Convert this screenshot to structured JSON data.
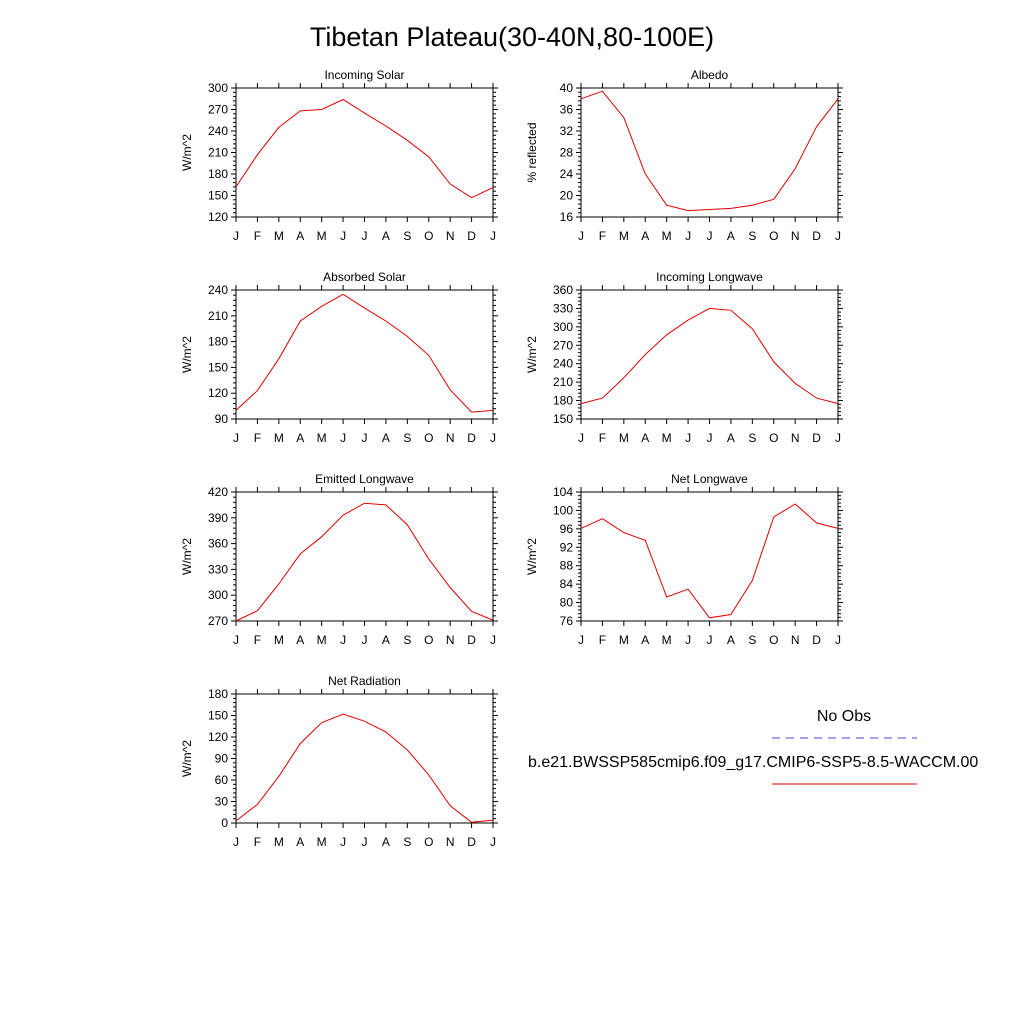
{
  "figure": {
    "title": "Tibetan Plateau(30-40N,80-100E)"
  },
  "legend": {
    "obs_label": "No Obs",
    "obs_color": "#4444dd",
    "model_label": "b.e21.BWSSP585cmip6.f09_g17.CMIP6-SSP5-8.5-WACCM.00",
    "model_color": "#dd0000"
  },
  "chart_data": [
    {
      "type": "line",
      "title": "Incoming Solar",
      "ylabel": "W/m^2",
      "ylim": [
        120,
        300
      ],
      "yticks": [
        120,
        150,
        180,
        210,
        240,
        270,
        300
      ],
      "x": [
        "J",
        "F",
        "M",
        "A",
        "M",
        "J",
        "J",
        "A",
        "S",
        "O",
        "N",
        "D",
        "J"
      ],
      "series": [
        {
          "values": [
            162,
            207,
            245,
            268,
            270,
            284,
            265,
            247,
            227,
            204,
            166,
            147,
            161
          ]
        }
      ]
    },
    {
      "type": "line",
      "title": "Albedo",
      "ylabel": "% reflected",
      "ylim": [
        16,
        40
      ],
      "yticks": [
        16,
        20,
        24,
        28,
        32,
        36,
        40
      ],
      "x": [
        "J",
        "F",
        "M",
        "A",
        "M",
        "J",
        "J",
        "A",
        "S",
        "O",
        "N",
        "D",
        "J"
      ],
      "series": [
        {
          "values": [
            38.0,
            39.4,
            34.5,
            24.0,
            18.2,
            17.2,
            17.4,
            17.6,
            18.2,
            19.3,
            25.0,
            32.8,
            38.0
          ]
        }
      ]
    },
    {
      "type": "line",
      "title": "Absorbed Solar",
      "ylabel": "W/m^2",
      "ylim": [
        90,
        240
      ],
      "yticks": [
        90,
        120,
        150,
        180,
        210,
        240
      ],
      "x": [
        "J",
        "F",
        "M",
        "A",
        "M",
        "J",
        "J",
        "A",
        "S",
        "O",
        "N",
        "D",
        "J"
      ],
      "series": [
        {
          "values": [
            100,
            123,
            160,
            204,
            221,
            235,
            219,
            204,
            186,
            164,
            124,
            98,
            100
          ]
        }
      ]
    },
    {
      "type": "line",
      "title": "Incoming Longwave",
      "ylabel": "W/m^2",
      "ylim": [
        150,
        360
      ],
      "yticks": [
        150,
        180,
        210,
        240,
        270,
        300,
        330,
        360
      ],
      "x": [
        "J",
        "F",
        "M",
        "A",
        "M",
        "J",
        "J",
        "A",
        "S",
        "O",
        "N",
        "D",
        "J"
      ],
      "series": [
        {
          "values": [
            175,
            184,
            217,
            255,
            287,
            311,
            330,
            327,
            297,
            243,
            208,
            184,
            175
          ]
        }
      ]
    },
    {
      "type": "line",
      "title": "Emitted Longwave",
      "ylabel": "W/m^2",
      "ylim": [
        270,
        420
      ],
      "yticks": [
        270,
        300,
        330,
        360,
        390,
        420
      ],
      "x": [
        "J",
        "F",
        "M",
        "A",
        "M",
        "J",
        "J",
        "A",
        "S",
        "O",
        "N",
        "D",
        "J"
      ],
      "series": [
        {
          "values": [
            270,
            282,
            313,
            348,
            368,
            393,
            407,
            405,
            382,
            342,
            309,
            281,
            271
          ]
        }
      ]
    },
    {
      "type": "line",
      "title": "Net Longwave",
      "ylabel": "W/m^2",
      "ylim": [
        76,
        104
      ],
      "yticks": [
        76,
        80,
        84,
        88,
        92,
        96,
        100,
        104
      ],
      "x": [
        "J",
        "F",
        "M",
        "A",
        "M",
        "J",
        "J",
        "A",
        "S",
        "O",
        "N",
        "D",
        "J"
      ],
      "series": [
        {
          "values": [
            96.1,
            98.2,
            95.2,
            93.5,
            81.2,
            82.9,
            76.7,
            77.4,
            84.8,
            98.6,
            101.4,
            97.3,
            96.1
          ]
        }
      ]
    },
    {
      "type": "line",
      "title": "Net Radiation",
      "ylabel": "W/m^2",
      "ylim": [
        0,
        180
      ],
      "yticks": [
        0,
        30,
        60,
        90,
        120,
        150,
        180
      ],
      "x": [
        "J",
        "F",
        "M",
        "A",
        "M",
        "J",
        "J",
        "A",
        "S",
        "O",
        "N",
        "D",
        "J"
      ],
      "series": [
        {
          "values": [
            3,
            26,
            65,
            111,
            140,
            152,
            142,
            127,
            102,
            67,
            24,
            1,
            4
          ]
        }
      ]
    }
  ]
}
